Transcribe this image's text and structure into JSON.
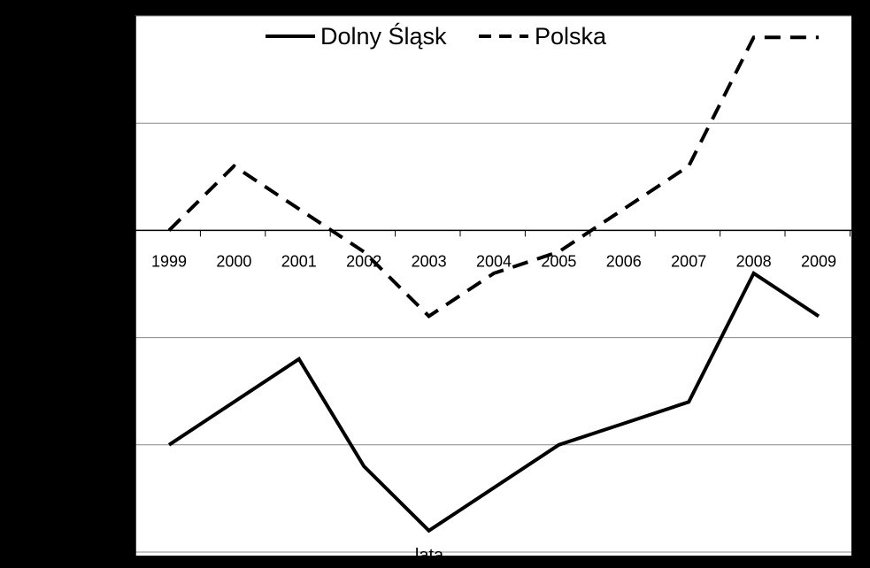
{
  "chart_data": {
    "type": "line",
    "title": "",
    "xlabel": "lata",
    "ylabel": "",
    "categories": [
      "1999",
      "2000",
      "2001",
      "2002",
      "2003",
      "2004",
      "2005",
      "2006",
      "2007",
      "2008",
      "2009"
    ],
    "ylim": [
      -3,
      2
    ],
    "y_gridlines": [
      -3,
      -2,
      -1,
      0,
      1,
      2
    ],
    "grid": true,
    "legend_position": "top-center",
    "series": [
      {
        "name": "Dolny Śląsk",
        "style": "solid",
        "values": [
          -2.0,
          -1.6,
          -1.2,
          -2.2,
          -2.8,
          -2.4,
          -2.0,
          -1.8,
          -1.6,
          -0.4,
          -0.8
        ]
      },
      {
        "name": "Polska",
        "style": "dashed",
        "values": [
          0.0,
          0.6,
          0.2,
          -0.2,
          -0.8,
          -0.4,
          -0.2,
          0.2,
          0.6,
          1.8,
          1.8
        ]
      }
    ]
  },
  "colors": {
    "background": "#000000",
    "plot_area": "#ffffff",
    "line": "#000000",
    "grid": "#888888"
  }
}
